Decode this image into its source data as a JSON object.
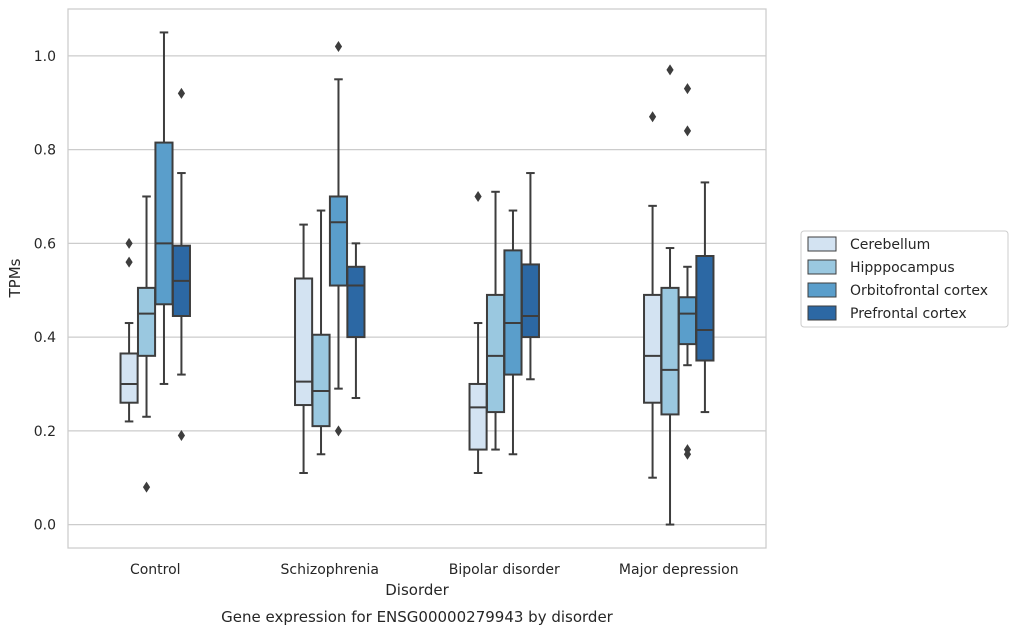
{
  "chart_data": {
    "type": "box",
    "title": "",
    "caption": "Gene expression for ENSG00000279943 by disorder",
    "xlabel": "Disorder",
    "ylabel": "TPMs",
    "ylim": [
      -0.05,
      1.1
    ],
    "yticks": [
      "0.0",
      "0.2",
      "0.4",
      "0.6",
      "0.8",
      "1.0"
    ],
    "grid": "horizontal",
    "legend_position": "right",
    "categories": [
      "Control",
      "Schizophrenia",
      "Bipolar disorder",
      "Major depression"
    ],
    "series": [
      {
        "name": "Cerebellum",
        "color": "#d3e3f2",
        "boxes": [
          {
            "whislo": 0.22,
            "q1": 0.26,
            "med": 0.3,
            "q3": 0.365,
            "whishi": 0.43,
            "fliers": [
              0.6,
              0.56
            ]
          },
          {
            "whislo": 0.11,
            "q1": 0.255,
            "med": 0.305,
            "q3": 0.525,
            "whishi": 0.64,
            "fliers": []
          },
          {
            "whislo": 0.11,
            "q1": 0.16,
            "med": 0.25,
            "q3": 0.3,
            "whishi": 0.43,
            "fliers": [
              0.7
            ]
          },
          {
            "whislo": 0.1,
            "q1": 0.26,
            "med": 0.36,
            "q3": 0.49,
            "whishi": 0.68,
            "fliers": [
              0.87
            ]
          }
        ]
      },
      {
        "name": "Hipppocampus",
        "color": "#9ac8e0",
        "boxes": [
          {
            "whislo": 0.23,
            "q1": 0.36,
            "med": 0.45,
            "q3": 0.505,
            "whishi": 0.7,
            "fliers": [
              0.08
            ]
          },
          {
            "whislo": 0.15,
            "q1": 0.21,
            "med": 0.285,
            "q3": 0.405,
            "whishi": 0.67,
            "fliers": []
          },
          {
            "whislo": 0.16,
            "q1": 0.24,
            "med": 0.36,
            "q3": 0.49,
            "whishi": 0.71,
            "fliers": []
          },
          {
            "whislo": 0.0,
            "q1": 0.235,
            "med": 0.33,
            "q3": 0.505,
            "whishi": 0.59,
            "fliers": [
              0.97
            ]
          }
        ]
      },
      {
        "name": "Orbitofrontal cortex",
        "color": "#5a9ecb",
        "boxes": [
          {
            "whislo": 0.3,
            "q1": 0.47,
            "med": 0.6,
            "q3": 0.815,
            "whishi": 1.05,
            "fliers": []
          },
          {
            "whislo": 0.29,
            "q1": 0.51,
            "med": 0.645,
            "q3": 0.7,
            "whishi": 0.95,
            "fliers": [
              1.02,
              0.2
            ]
          },
          {
            "whislo": 0.15,
            "q1": 0.32,
            "med": 0.43,
            "q3": 0.585,
            "whishi": 0.67,
            "fliers": []
          },
          {
            "whislo": 0.34,
            "q1": 0.385,
            "med": 0.45,
            "q3": 0.485,
            "whishi": 0.55,
            "fliers": [
              0.84,
              0.93,
              0.16,
              0.15
            ]
          }
        ]
      },
      {
        "name": "Prefrontal cortex",
        "color": "#2c68a4",
        "boxes": [
          {
            "whislo": 0.32,
            "q1": 0.445,
            "med": 0.52,
            "q3": 0.595,
            "whishi": 0.75,
            "fliers": [
              0.92,
              0.19
            ]
          },
          {
            "whislo": 0.27,
            "q1": 0.4,
            "med": 0.51,
            "q3": 0.55,
            "whishi": 0.6,
            "fliers": []
          },
          {
            "whislo": 0.31,
            "q1": 0.4,
            "med": 0.445,
            "q3": 0.555,
            "whishi": 0.75,
            "fliers": []
          },
          {
            "whislo": 0.24,
            "q1": 0.35,
            "med": 0.415,
            "q3": 0.573,
            "whishi": 0.73,
            "fliers": []
          }
        ]
      }
    ]
  }
}
